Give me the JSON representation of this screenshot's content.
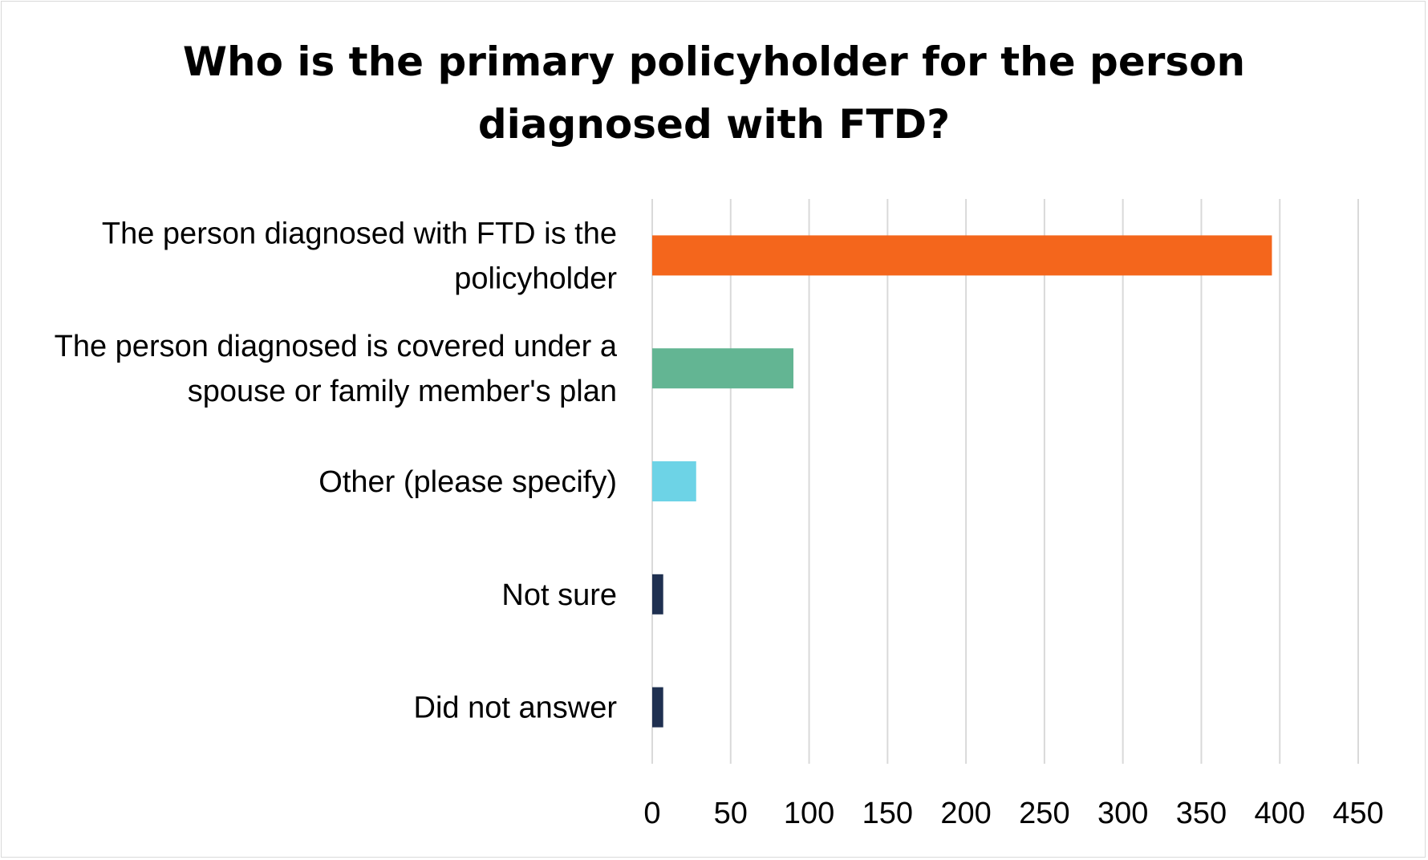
{
  "chart_data": {
    "type": "bar",
    "orientation": "horizontal",
    "title": "Who is the primary policyholder for the person diagnosed with FTD?",
    "title_lines": [
      "Who is the primary policyholder for the person",
      "diagnosed with FTD?"
    ],
    "categories": [
      "The person diagnosed with FTD is the policyholder",
      "The person diagnosed is covered under a spouse or family member's plan",
      "Other (please specify)",
      "Not sure",
      "Did not answer"
    ],
    "category_label_lines": [
      [
        "The person diagnosed with FTD is the",
        "policyholder"
      ],
      [
        "The person diagnosed is covered under a",
        "spouse or family member's plan"
      ],
      [
        "Other (please specify)"
      ],
      [
        "Not sure"
      ],
      [
        "Did not answer"
      ]
    ],
    "values": [
      395,
      90,
      28,
      7,
      7
    ],
    "bar_colors": [
      "#f4661c",
      "#63b593",
      "#6dd3e6",
      "#1f3050",
      "#1f3050"
    ],
    "xlim": [
      0,
      450
    ],
    "xticks": [
      0,
      50,
      100,
      150,
      200,
      250,
      300,
      350,
      400,
      450
    ],
    "grid": true,
    "legend": "none"
  }
}
